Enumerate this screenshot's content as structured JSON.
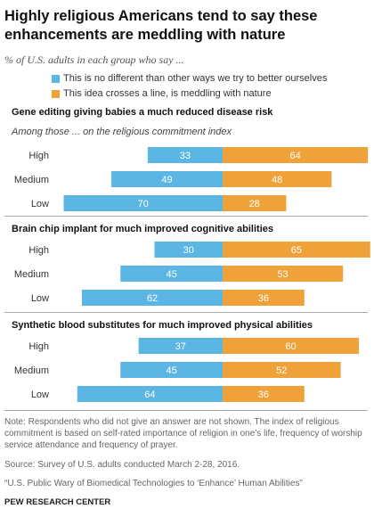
{
  "title_line1": "Highly religious Americans tend to say these",
  "title_line2": "enhancements are meddling with nature",
  "subtitle": "% of U.S. adults in each group who say ...",
  "legend": [
    {
      "label": "This is no different than other ways we try to better ourselves",
      "color": "#5BB6E3"
    },
    {
      "label": "This idea crosses a line, is meddling with nature",
      "color": "#F0A23A"
    }
  ],
  "chart_data": [
    {
      "type": "bar",
      "title": "Gene editing giving babies a much reduced disease risk",
      "subtitle": "Among those ... on the religious commitment index",
      "categories": [
        "High",
        "Medium",
        "Low"
      ],
      "series": [
        {
          "name": "This is no different than other ways we try to better ourselves",
          "values": [
            33,
            49,
            70
          ]
        },
        {
          "name": "This idea crosses a line, is meddling with nature",
          "values": [
            64,
            48,
            28
          ]
        }
      ]
    },
    {
      "type": "bar",
      "title": "Brain chip implant for much improved  cognitive abilities",
      "categories": [
        "High",
        "Medium",
        "Low"
      ],
      "series": [
        {
          "name": "This is no different than other ways we try to better ourselves",
          "values": [
            30,
            45,
            62
          ]
        },
        {
          "name": "This idea crosses a line, is meddling with nature",
          "values": [
            65,
            53,
            36
          ]
        }
      ]
    },
    {
      "type": "bar",
      "title": "Synthetic blood substitutes for much improved  physical abilities",
      "categories": [
        "High",
        "Medium",
        "Low"
      ],
      "series": [
        {
          "name": "This is no different than other ways we try to better ourselves",
          "values": [
            37,
            45,
            64
          ]
        },
        {
          "name": "This idea crosses a line, is meddling with nature",
          "values": [
            60,
            52,
            36
          ]
        }
      ]
    }
  ],
  "notes": {
    "note": "Note: Respondents who did not give an answer are not shown. The index of religious commitment is based on self-rated importance of religion in one’s life, frequency of worship service attendance and frequency of prayer.",
    "source": "Source: Survey of U.S. adults conducted March 2-28, 2016.",
    "report": "“U.S. Public Wary of Biomedical Technologies to ‘Enhance’ Human Abilities”",
    "org": "PEW RESEARCH CENTER"
  }
}
